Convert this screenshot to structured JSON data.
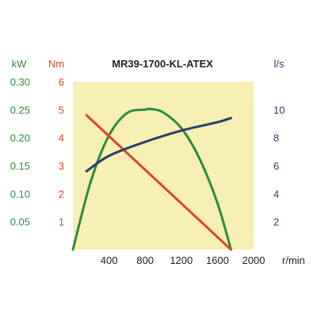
{
  "chart_data": {
    "type": "line",
    "title": "MR39-1700-KL-ATEX",
    "x_axis": {
      "unit": "r/min",
      "range": [
        0,
        2000
      ],
      "ticks": [
        400,
        800,
        1200,
        1600,
        2000
      ],
      "tick_labels": [
        "400",
        "800",
        "1200",
        "1600",
        "2000"
      ]
    },
    "y_axes": [
      {
        "id": "power",
        "unit": "kW",
        "range": [
          0,
          0.3
        ],
        "ticks": [
          0.05,
          0.1,
          0.15,
          0.2,
          0.25,
          0.3
        ],
        "tick_labels": [
          "0.05",
          "0.10",
          "0.15",
          "0.20",
          "0.25",
          "0.30"
        ],
        "color": "#2e8b3c",
        "side": "left-outer"
      },
      {
        "id": "torque",
        "unit": "Nm",
        "range": [
          0,
          6
        ],
        "ticks": [
          1,
          2,
          3,
          4,
          5,
          6
        ],
        "tick_labels": [
          "1",
          "2",
          "3",
          "4",
          "5",
          "6"
        ],
        "color": "#d9472b",
        "side": "left-inner"
      },
      {
        "id": "flow",
        "unit": "l/s",
        "range": [
          0,
          12
        ],
        "ticks": [
          2,
          4,
          6,
          8,
          10
        ],
        "tick_labels": [
          "2",
          "4",
          "6",
          "8",
          "10"
        ],
        "color": "#2c3e6b",
        "side": "right"
      }
    ],
    "series": [
      {
        "axis": "power",
        "color": "#2e8b3c",
        "x": [
          0,
          200,
          400,
          600,
          800,
          870,
          1000,
          1200,
          1400,
          1600,
          1750
        ],
        "y": [
          0,
          0.123,
          0.204,
          0.244,
          0.25,
          0.251,
          0.245,
          0.217,
          0.163,
          0.083,
          0
        ]
      },
      {
        "axis": "torque",
        "color": "#d9472b",
        "x": [
          150,
          1750
        ],
        "y": [
          4.8,
          0
        ]
      },
      {
        "axis": "flow",
        "color": "#2c3e6b",
        "x": [
          150,
          400,
          800,
          1200,
          1600,
          1750
        ],
        "y": [
          5.6,
          6.7,
          7.7,
          8.5,
          9.1,
          9.4
        ]
      }
    ],
    "grid": false,
    "background_color": "#f7efb4"
  }
}
